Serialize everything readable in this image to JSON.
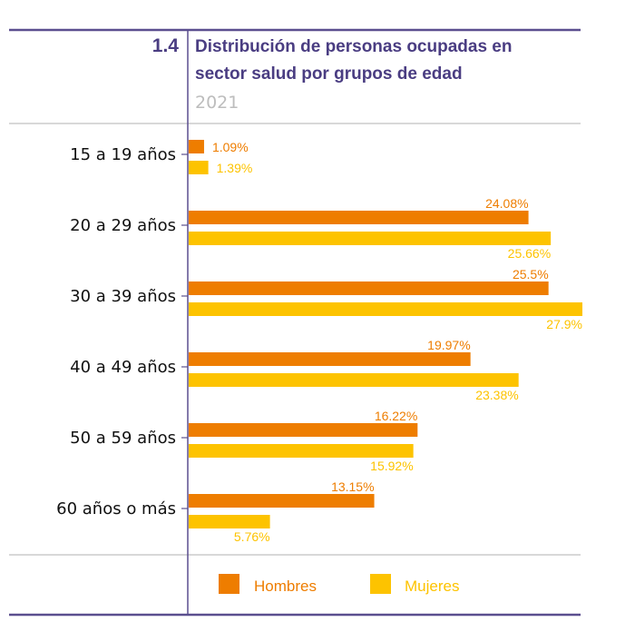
{
  "chart_data": {
    "type": "bar",
    "orientation": "horizontal",
    "number": "1.4",
    "title_lines": [
      "Distribución de personas ocupadas en",
      "sector salud por grupos de edad"
    ],
    "subtitle": "2021",
    "categories": [
      "15 a 19 años",
      "20 a 29 años",
      "30 a 39 años",
      "40 a 49 años",
      "50 a 59 años",
      "60 años o más"
    ],
    "series": [
      {
        "name": "Hombres",
        "color": "#ee7d00",
        "values": [
          1.09,
          24.08,
          25.5,
          19.97,
          16.22,
          13.15
        ],
        "labels": [
          "1.09%",
          "24.08%",
          "25.5%",
          "19.97%",
          "16.22%",
          "13.15%"
        ]
      },
      {
        "name": "Mujeres",
        "color": "#fdc300",
        "values": [
          1.39,
          25.66,
          27.9,
          23.38,
          15.92,
          5.76
        ],
        "labels": [
          "1.39%",
          "25.66%",
          "27.9%",
          "23.38%",
          "15.92%",
          "5.76%"
        ]
      }
    ],
    "xlim": [
      0,
      27.9
    ],
    "legend": "bottom",
    "grid": false
  },
  "colors": {
    "accent": "#4a3d82",
    "rule": "#cccccc"
  }
}
